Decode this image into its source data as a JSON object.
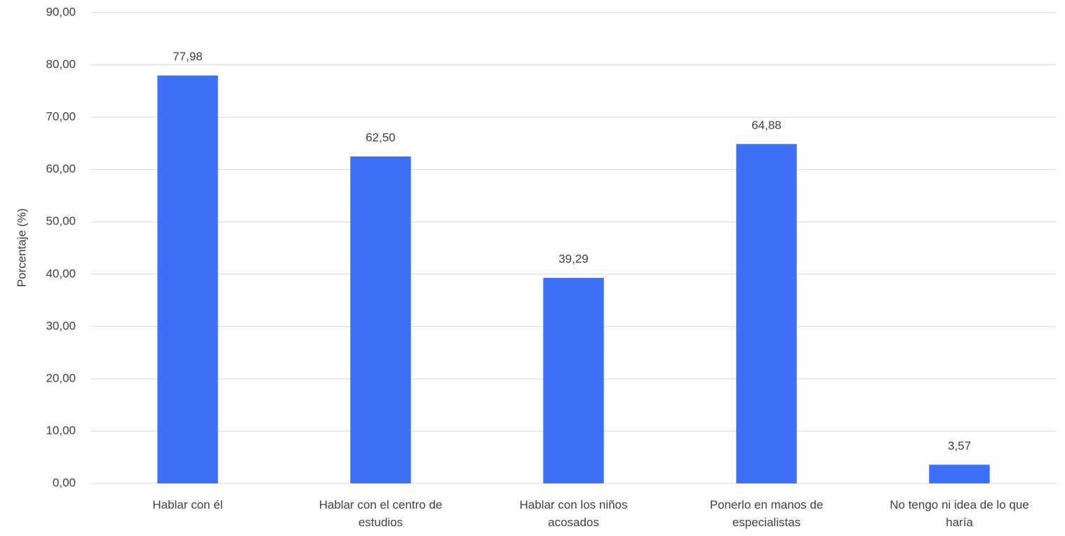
{
  "chart_data": {
    "type": "bar",
    "y_label": "Porcentaje (%)",
    "categories": [
      "Hablar con él",
      "Hablar con el centro de estudios",
      "Hablar con los niños acosados",
      "Ponerlo en manos de especialistas",
      "No tengo ni idea de lo que haría"
    ],
    "values": [
      77.98,
      62.5,
      39.29,
      64.88,
      3.57
    ],
    "value_labels": [
      "77,98",
      "62,50",
      "39,29",
      "64,88",
      "3,57"
    ],
    "color": "#3f6ef7",
    "ylim": [
      0,
      90
    ],
    "yticks": [
      {
        "value": 0,
        "label": "0,00"
      },
      {
        "value": 10,
        "label": "10,00"
      },
      {
        "value": 20,
        "label": "20,00"
      },
      {
        "value": 30,
        "label": "30,00"
      },
      {
        "value": 40,
        "label": "40,00"
      },
      {
        "value": 50,
        "label": "50,00"
      },
      {
        "value": 60,
        "label": "60,00"
      },
      {
        "value": 70,
        "label": "70,00"
      },
      {
        "value": 80,
        "label": "80,00"
      },
      {
        "value": 90,
        "label": "90,00"
      }
    ],
    "grid": true
  }
}
